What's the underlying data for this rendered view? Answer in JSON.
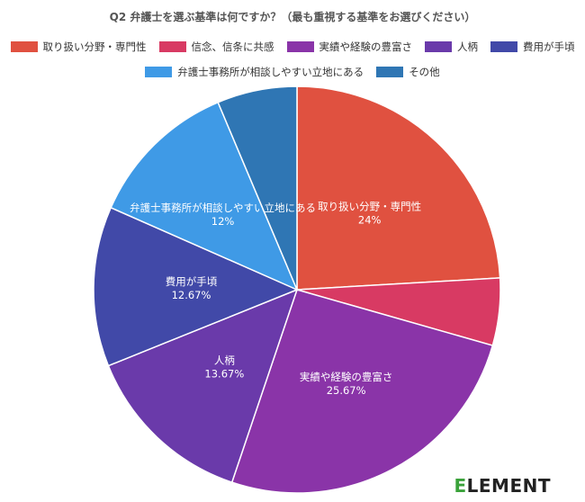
{
  "chart_data": {
    "type": "pie",
    "title": "Q2 弁護士を選ぶ基準は何ですか？（最も重視する基準をお選びください）",
    "slices": [
      {
        "label": "取り扱い分野・専門性",
        "value": 24,
        "display": "24%",
        "color": "#e05140"
      },
      {
        "label": "信念、信条に共感",
        "value": 5.33,
        "display": "",
        "color": "#d83a63"
      },
      {
        "label": "実績や経験の豊富さ",
        "value": 25.67,
        "display": "25.67%",
        "color": "#8a34a8"
      },
      {
        "label": "人柄",
        "value": 13.67,
        "display": "13.67%",
        "color": "#6a3aaa"
      },
      {
        "label": "費用が手頃",
        "value": 12.67,
        "display": "12.67%",
        "color": "#4149a8"
      },
      {
        "label": "弁護士事務所が相談しやすい立地にある",
        "value": 12,
        "display": "12%",
        "color": "#3f9ae6"
      },
      {
        "label": "その他",
        "value": 6.33,
        "display": "",
        "color": "#2f76b4"
      }
    ],
    "legend_position": "top"
  },
  "logo": {
    "first": "E",
    "rest": "LEMENT"
  }
}
